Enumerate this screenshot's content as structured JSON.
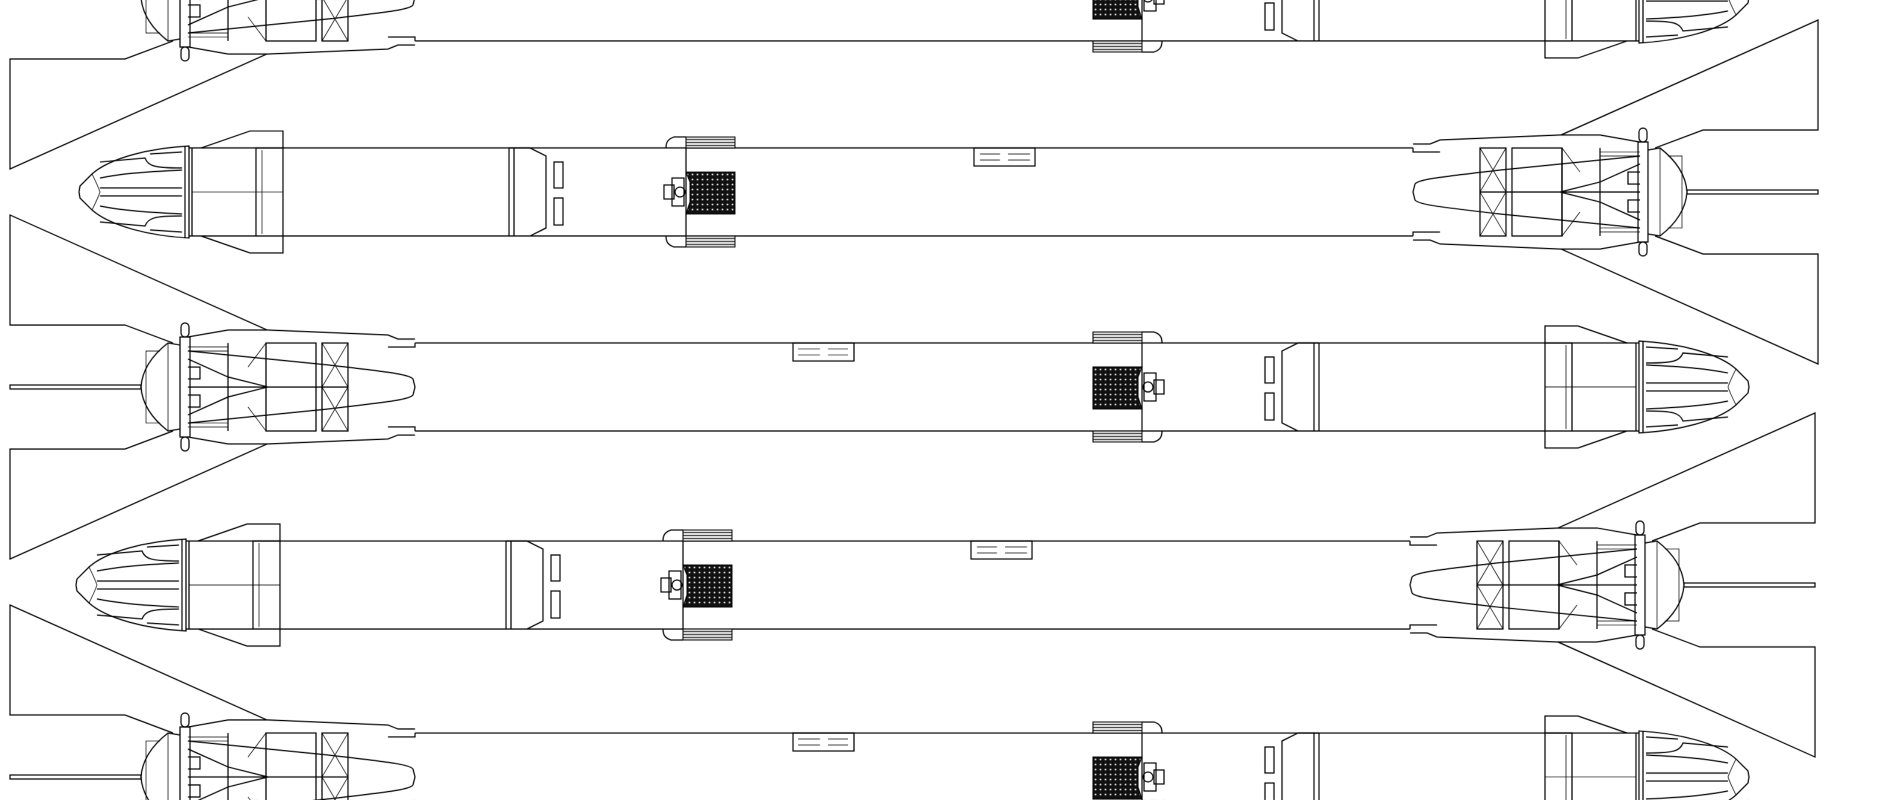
{
  "diagram": {
    "stroke_color": "#000000",
    "background": "#ffffff",
    "rows": [
      {
        "orientation": "nose-right"
      },
      {
        "orientation": "nose-left"
      },
      {
        "orientation": "nose-right"
      },
      {
        "orientation": "nose-left"
      },
      {
        "orientation": "nose-right"
      }
    ]
  }
}
